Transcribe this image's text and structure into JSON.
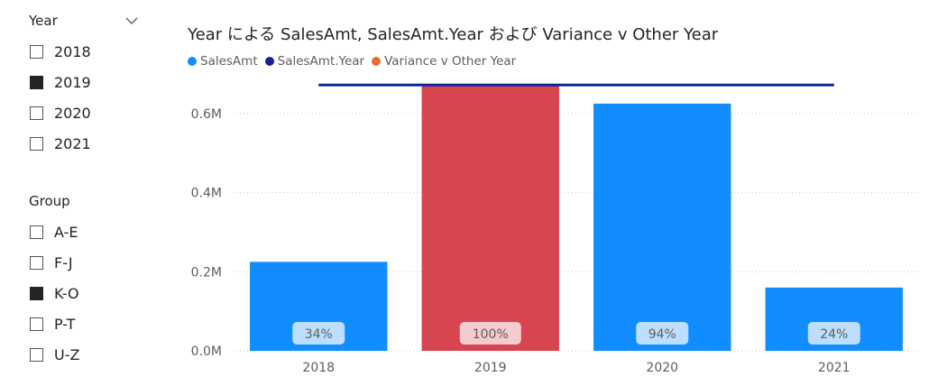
{
  "slicers": {
    "year": {
      "title": "Year",
      "items": [
        {
          "label": "2018",
          "checked": false
        },
        {
          "label": "2019",
          "checked": true
        },
        {
          "label": "2020",
          "checked": false
        },
        {
          "label": "2021",
          "checked": false
        }
      ]
    },
    "group": {
      "title": "Group",
      "items": [
        {
          "label": "A-E",
          "checked": false
        },
        {
          "label": "F-J",
          "checked": false
        },
        {
          "label": "K-O",
          "checked": true
        },
        {
          "label": "P-T",
          "checked": false
        },
        {
          "label": "U-Z",
          "checked": false
        }
      ]
    }
  },
  "chart_data": {
    "type": "bar",
    "title": "Year による SalesAmt, SalesAmt.Year および Variance v Other Year",
    "legend": [
      {
        "label": "SalesAmt",
        "color": "#118dff"
      },
      {
        "label": "SalesAmt.Year",
        "color": "#12239e"
      },
      {
        "label": "Variance v Other Year",
        "color": "#e66c37"
      }
    ],
    "legend_position": "top-left",
    "categories": [
      "2018",
      "2019",
      "2020",
      "2021"
    ],
    "series": [
      {
        "name": "SalesAmt",
        "type": "bar",
        "values": [
          0.225,
          0.672,
          0.625,
          0.16
        ],
        "colors": [
          "#118dff",
          "#d64550",
          "#118dff",
          "#118dff"
        ]
      },
      {
        "name": "SalesAmt.Year",
        "type": "line",
        "values": [
          0.672,
          0.672,
          0.672,
          0.672
        ],
        "color": "#12239e"
      }
    ],
    "data_labels": [
      "34%",
      "100%",
      "94%",
      "24%"
    ],
    "y_ticks": [
      0,
      0.2,
      0.4,
      0.6
    ],
    "y_tick_labels": [
      "0.0M",
      "0.2M",
      "0.4M",
      "0.6M"
    ],
    "ylim": [
      0,
      0.7
    ],
    "grid": true,
    "xlabel": "",
    "ylabel": ""
  }
}
